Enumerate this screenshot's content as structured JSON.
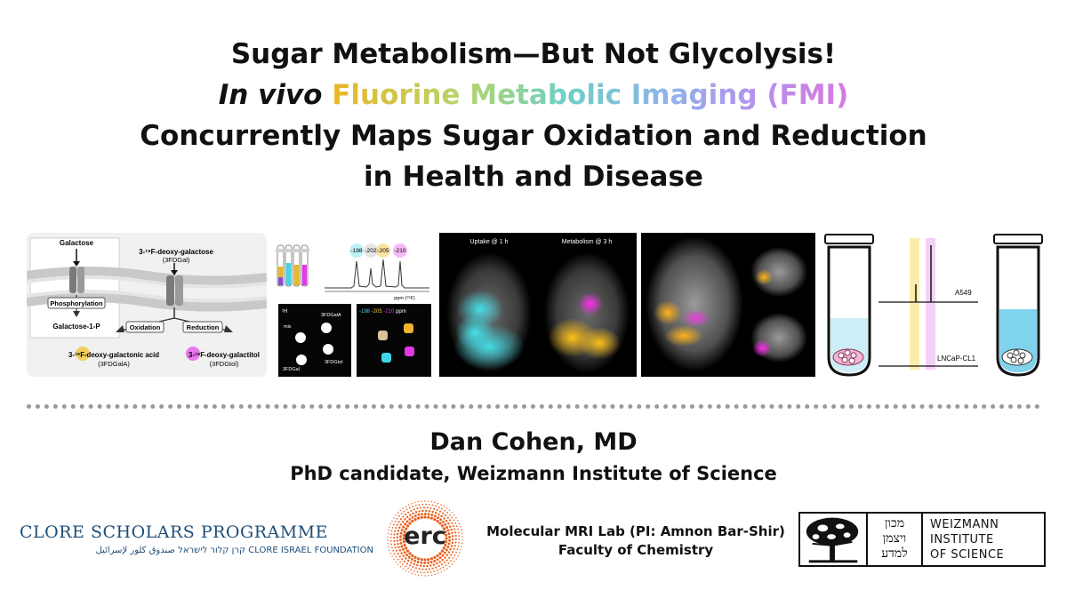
{
  "title": {
    "line1": "Sugar Metabolism—But Not Glycolysis!",
    "line2_italic": "In vivo",
    "line2_colored": "Fluorine Metabolic Imaging (FMI)",
    "line3": "Concurrently Maps Sugar Oxidation and Reduction",
    "line4": "in Health and Disease"
  },
  "pathway": {
    "galactose": "Galactose",
    "phosphorylation": "Phosphorylation",
    "galactose_1p": "Galactose-1-P",
    "fdgal": "3-¹⁹F-deoxy-galactose",
    "fdgal_abbr": "(3FDGal)",
    "oxidation": "Oxidation",
    "reduction": "Reduction",
    "acid": "3-¹⁹F-deoxy-galactonic acid",
    "acid_abbr": "(3FDGalA)",
    "tol": "3-¹⁹F-deoxy-galactitol",
    "tol_abbr": "(3FDGtol)"
  },
  "nmr": {
    "peaks": [
      "-198",
      "-202",
      "-205",
      "-210"
    ],
    "axis": "ppm (¹⁹F)",
    "h_label": "¹H",
    "mix": "mix",
    "fdgala": "3FDGalA",
    "fdgal": "3FDGal",
    "fdgtol": "3FDGtol",
    "f_peaks": [
      "-198",
      "-205",
      "-210"
    ],
    "ppm": "ppm"
  },
  "mri": {
    "uptake": "Uptake @ 1 h",
    "metabolism": "Metabolism @ 3 h"
  },
  "cells": {
    "a549": "A549",
    "lncap": "LNCaP-CL1"
  },
  "author": "Dan Cohen, MD",
  "affiliation": "PhD candidate, Weizmann Institute of Science",
  "clore": {
    "name": "CLORE SCHOLARS PROGRAMME",
    "sub": "קרן קלור לישראל  صندوق كلور لإسرائيل  CLORE ISRAEL FOUNDATION"
  },
  "erc": "erc",
  "lab": {
    "line1": "Molecular MRI Lab (PI: Amnon Bar-Shir)",
    "line2": "Faculty of Chemistry"
  },
  "weizmann": {
    "hebrew": [
      "מכון",
      "ויצמן",
      "למדע"
    ],
    "name": [
      "WEIZMANN",
      "INSTITUTE",
      "OF SCIENCE"
    ]
  },
  "colors": {
    "yellow": "#f2c12e",
    "cyan": "#3fd6e6",
    "magenta": "#e238e6",
    "clore_blue": "#1f4e79",
    "erc_orange": "#e8601c"
  }
}
